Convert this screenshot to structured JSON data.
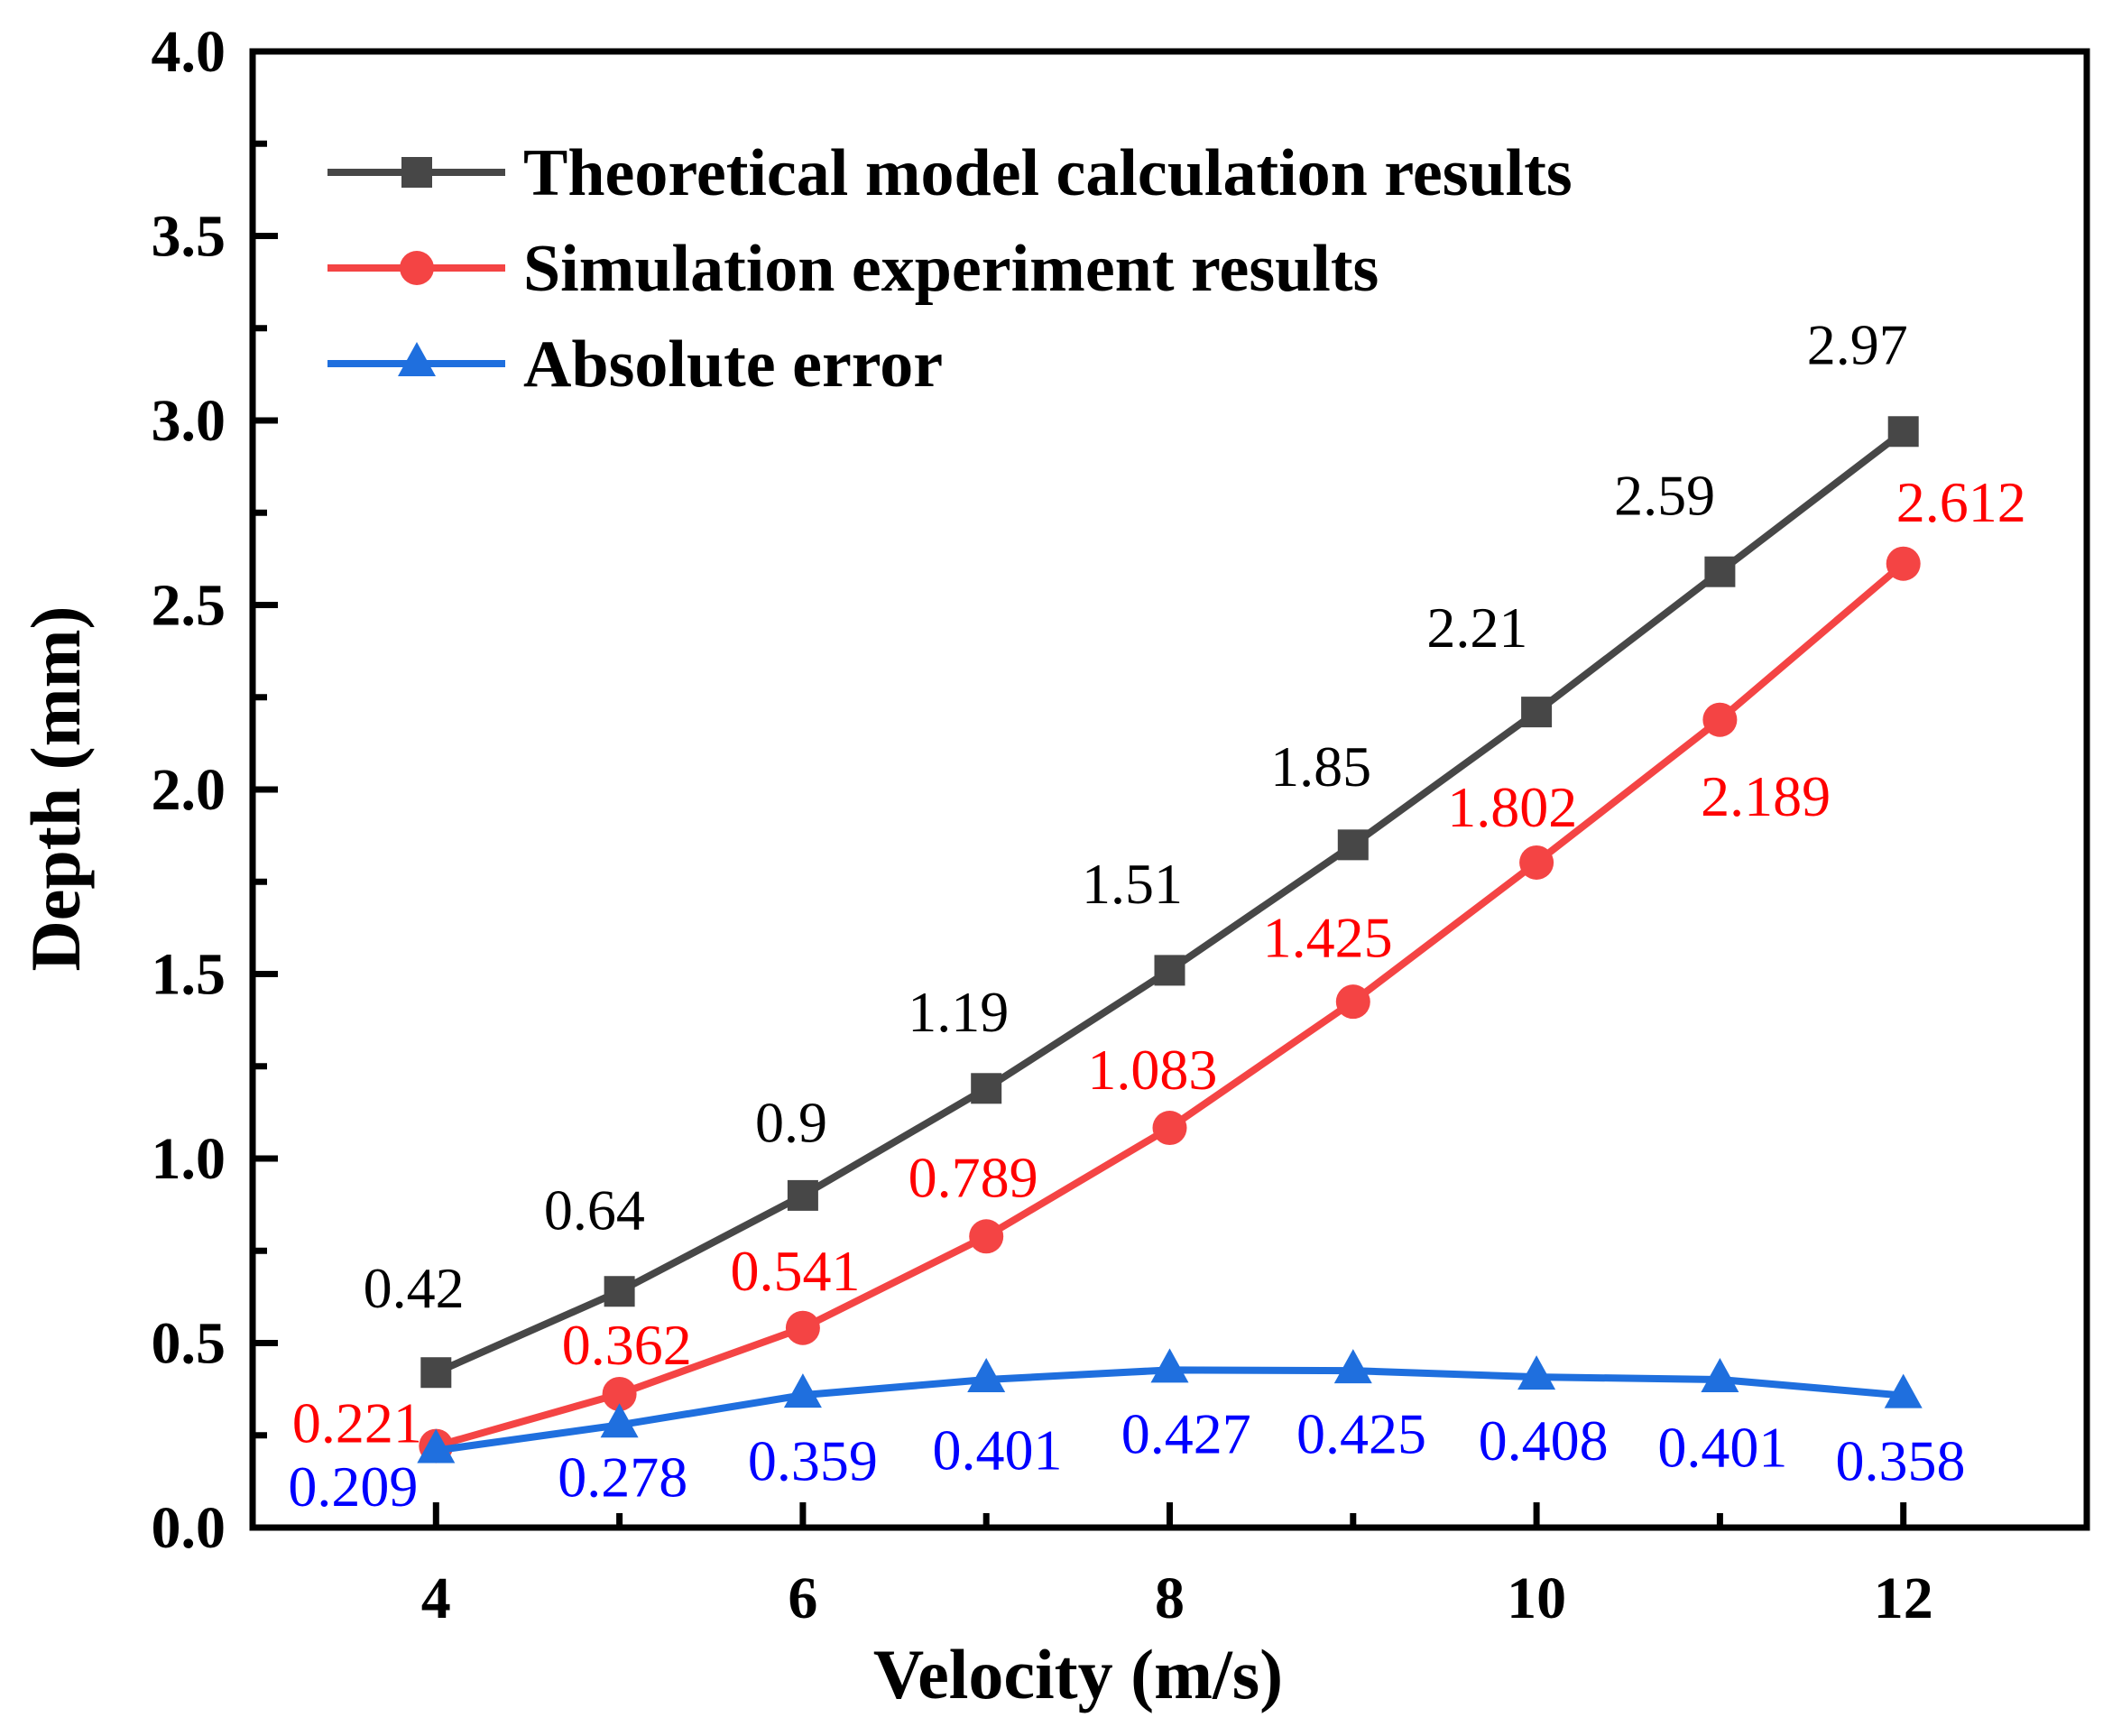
{
  "chart_data": {
    "type": "line",
    "xlabel": "Velocity (m/s)",
    "ylabel": "Depth (mm)",
    "xlim": [
      3,
      13
    ],
    "ylim": [
      0,
      4
    ],
    "xticks": [
      4,
      6,
      8,
      10,
      12
    ],
    "xtick_labels": [
      "4",
      "6",
      "8",
      "10",
      "12"
    ],
    "yticks": [
      0,
      0.5,
      1,
      1.5,
      2,
      2.5,
      3,
      3.5,
      4
    ],
    "ytick_labels": [
      "0.0",
      "0.5",
      "1.0",
      "1.5",
      "2.0",
      "2.5",
      "3.0",
      "3.5",
      "4.0"
    ],
    "grid": false,
    "legend_position": "top-left",
    "x": [
      4,
      5,
      6,
      7,
      8,
      9,
      10,
      11,
      12
    ],
    "series": [
      {
        "name": "Theoretical model calculation results",
        "marker": "square",
        "color": "#474747",
        "label_color": "#000000",
        "values": [
          0.42,
          0.64,
          0.9,
          1.19,
          1.51,
          1.85,
          2.21,
          2.59,
          2.97
        ],
        "labels": [
          "0.42",
          "0.64",
          "0.9",
          "1.19",
          "1.51",
          "1.85",
          "2.21",
          "2.59",
          "2.97"
        ]
      },
      {
        "name": "Simulation experiment results",
        "marker": "circle",
        "color": "#f44444",
        "label_color": "#ff0000",
        "values": [
          0.221,
          0.362,
          0.541,
          0.789,
          1.083,
          1.425,
          1.802,
          2.189,
          2.612
        ],
        "labels": [
          "0.221",
          "0.362",
          "0.541",
          "0.789",
          "1.083",
          "1.425",
          "1.802",
          "2.189",
          "2.612"
        ]
      },
      {
        "name": "Absolute error",
        "marker": "triangle",
        "color": "#1f6fde",
        "label_color": "#0000ff",
        "values": [
          0.209,
          0.278,
          0.359,
          0.401,
          0.427,
          0.425,
          0.408,
          0.401,
          0.358
        ],
        "labels": [
          "0.209",
          "0.278",
          "0.359",
          "0.401",
          "0.427",
          "0.425",
          "0.408",
          "0.401",
          "0.358"
        ]
      }
    ]
  }
}
